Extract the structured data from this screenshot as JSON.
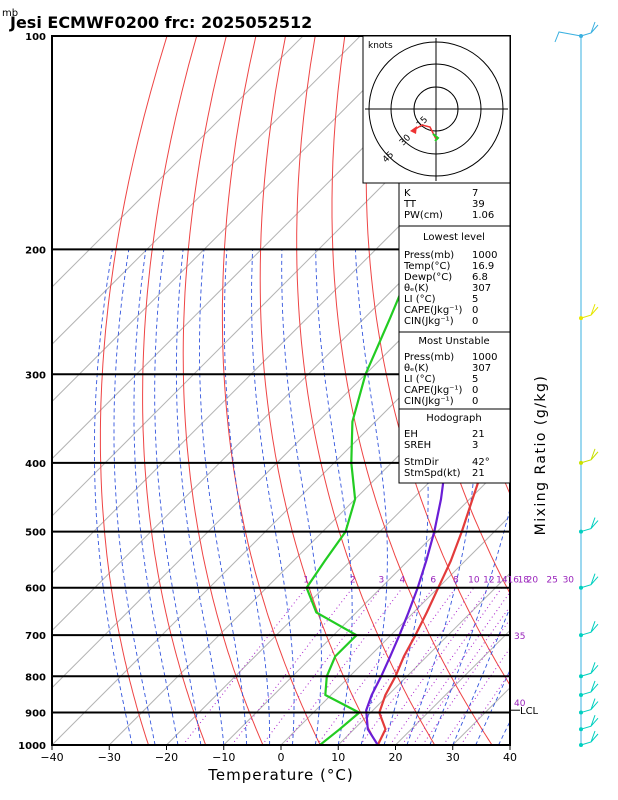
{
  "header": {
    "unit": "mb",
    "title": "Jesi ECMWF0200  frc: 2025052512"
  },
  "chart_data": {
    "type": "line",
    "title": "Jesi ECMWF0200  frc: 2025052512",
    "xlabel": "Temperature (°C)",
    "ylabel": "mb",
    "right_label": "Mixing Ratio (g/kg)",
    "xlim": [
      -40,
      40
    ],
    "ylim": [
      1000,
      100
    ],
    "x_ticks": [
      -40,
      -30,
      -20,
      -10,
      0,
      10,
      20,
      30,
      40
    ],
    "pressure_ticks": [
      100,
      200,
      300,
      400,
      500,
      600,
      700,
      800,
      900,
      1000
    ],
    "mixing_ratio_labels": [
      "1",
      "2",
      "3",
      "4",
      "6",
      "8",
      "10",
      "12",
      "14",
      "16",
      "18",
      "20",
      "25",
      "30"
    ],
    "mixing_ratio_values": [
      1,
      2,
      3,
      4,
      6,
      8,
      10,
      12,
      14,
      16,
      18,
      20,
      25,
      30
    ],
    "adiabat_labels": [
      {
        "text": "35",
        "p": 700
      },
      {
        "text": "40",
        "p": 870
      }
    ],
    "lcl_label": "LCL",
    "lcl_pressure": 893,
    "series": [
      {
        "key": "temperature",
        "color": "#e33b3b",
        "points": [
          [
            1000,
            16.9
          ],
          [
            950,
            15.5
          ],
          [
            900,
            11.5
          ],
          [
            850,
            9.5
          ],
          [
            800,
            8.0
          ],
          [
            750,
            6.0
          ],
          [
            700,
            4.3
          ],
          [
            650,
            2.3
          ],
          [
            600,
            0.0
          ],
          [
            550,
            -2.5
          ],
          [
            500,
            -5.7
          ],
          [
            450,
            -9.5
          ],
          [
            400,
            -13.7
          ],
          [
            350,
            -19.0
          ],
          [
            300,
            -24.6
          ],
          [
            250,
            -31.8
          ],
          [
            200,
            -28.6
          ],
          [
            150,
            -22.5
          ],
          [
            100,
            -14.0
          ]
        ]
      },
      {
        "key": "dewpoint",
        "color": "#22cc22",
        "points": [
          [
            1000,
            6.8
          ],
          [
            950,
            7.5
          ],
          [
            900,
            8.0
          ],
          [
            850,
            -1.0
          ],
          [
            800,
            -4.0
          ],
          [
            750,
            -6.0
          ],
          [
            700,
            -6.0
          ],
          [
            650,
            -17.0
          ],
          [
            600,
            -23.0
          ],
          [
            550,
            -24.5
          ],
          [
            500,
            -26.0
          ],
          [
            450,
            -30.0
          ],
          [
            400,
            -37.0
          ],
          [
            350,
            -44.0
          ],
          [
            300,
            -50.0
          ],
          [
            250,
            -55.5
          ],
          [
            200,
            -62.5
          ],
          [
            150,
            -72.0
          ],
          [
            100,
            -80.0
          ]
        ]
      },
      {
        "key": "parcel",
        "color": "#6a1ed6",
        "points": [
          [
            1000,
            16.9
          ],
          [
            950,
            12.4
          ],
          [
            893,
            8.8
          ],
          [
            850,
            7.1
          ],
          [
            800,
            5.5
          ],
          [
            750,
            3.6
          ],
          [
            700,
            1.5
          ],
          [
            650,
            -0.9
          ],
          [
            600,
            -3.6
          ],
          [
            550,
            -6.8
          ],
          [
            500,
            -10.5
          ],
          [
            450,
            -15.0
          ],
          [
            400,
            -20.5
          ],
          [
            350,
            -27.0
          ],
          [
            300,
            -34.8
          ],
          [
            250,
            -44.5
          ],
          [
            200,
            -56.5
          ],
          [
            150,
            -72.0
          ],
          [
            125,
            -82.0
          ]
        ]
      }
    ]
  },
  "hodograph": {
    "unit": "knots",
    "ring_labels": [
      "15",
      "30",
      "45"
    ]
  },
  "indices": {
    "basic": [
      {
        "label": "K",
        "value": "7"
      },
      {
        "label": "TT",
        "value": "39"
      },
      {
        "label": "PW(cm)",
        "value": "1.06"
      }
    ],
    "lowest_level": {
      "title": "Lowest level",
      "rows": [
        {
          "label": "Press(mb)",
          "value": "1000"
        },
        {
          "label": "Temp(°C)",
          "value": "16.9"
        },
        {
          "label": "Dewp(°C)",
          "value": "6.8"
        },
        {
          "label": "θₑ(K)",
          "value": "307"
        },
        {
          "label": "LI (°C)",
          "value": "5"
        },
        {
          "label": "CAPE(Jkg⁻¹)",
          "value": "0"
        },
        {
          "label": "CIN(Jkg⁻¹)",
          "value": "0"
        }
      ]
    },
    "most_unstable": {
      "title": "Most Unstable",
      "rows": [
        {
          "label": "Press(mb)",
          "value": "1000"
        },
        {
          "label": "θₑ(K)",
          "value": "307"
        },
        {
          "label": "LI (°C)",
          "value": "5"
        },
        {
          "label": "CAPE(Jkg⁻¹)",
          "value": "0"
        },
        {
          "label": "CIN(Jkg⁻¹)",
          "value": "0"
        }
      ]
    },
    "hodograph_stats": {
      "title": "Hodograph",
      "rows": [
        {
          "label": "EH",
          "value": "21"
        },
        {
          "label": "SREH",
          "value": "3"
        },
        {
          "label": "StmDir",
          "value": "42°"
        },
        {
          "label": "StmSpd(kt)",
          "value": "21"
        }
      ]
    }
  },
  "wind_profile": [
    {
      "p": 100,
      "color": "#3ab0e0"
    },
    {
      "p": 250,
      "color": "#e6e600"
    },
    {
      "p": 400,
      "color": "#c8e000"
    },
    {
      "p": 500,
      "color": "#00d0c0"
    },
    {
      "p": 600,
      "color": "#00d0c0"
    },
    {
      "p": 700,
      "color": "#00d0c0"
    },
    {
      "p": 800,
      "color": "#00d0c0"
    },
    {
      "p": 850,
      "color": "#00d0c0"
    },
    {
      "p": 900,
      "color": "#00d0c0"
    },
    {
      "p": 950,
      "color": "#00d0c0"
    },
    {
      "p": 1000,
      "color": "#00d0c0"
    }
  ]
}
